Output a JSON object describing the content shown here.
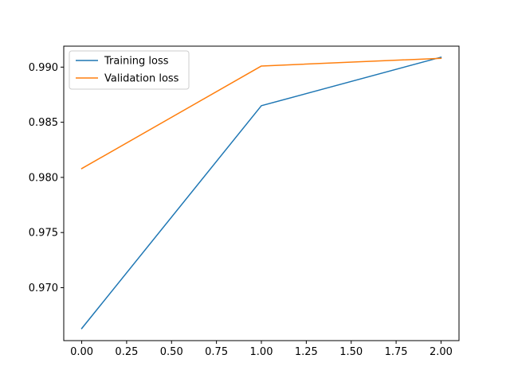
{
  "chart_data": {
    "type": "line",
    "title": "",
    "xlabel": "",
    "ylabel": "",
    "x": [
      0,
      1,
      2
    ],
    "xlim": [
      -0.1,
      2.1
    ],
    "ylim": [
      0.9652,
      0.9919
    ],
    "x_ticks": [
      "0.00",
      "0.25",
      "0.50",
      "0.75",
      "1.00",
      "1.25",
      "1.50",
      "1.75",
      "2.00"
    ],
    "x_tick_values": [
      0,
      0.25,
      0.5,
      0.75,
      1.0,
      1.25,
      1.5,
      1.75,
      2.0
    ],
    "y_ticks": [
      "0.970",
      "0.975",
      "0.980",
      "0.985",
      "0.990"
    ],
    "y_tick_values": [
      0.97,
      0.975,
      0.98,
      0.985,
      0.99
    ],
    "grid": false,
    "legend_position": "top-left",
    "series": [
      {
        "name": "Training loss",
        "color": "#1f77b4",
        "values": [
          0.9663,
          0.9865,
          0.9909
        ]
      },
      {
        "name": "Validation loss",
        "color": "#ff7f0e",
        "values": [
          0.9808,
          0.9901,
          0.9908
        ]
      }
    ]
  }
}
